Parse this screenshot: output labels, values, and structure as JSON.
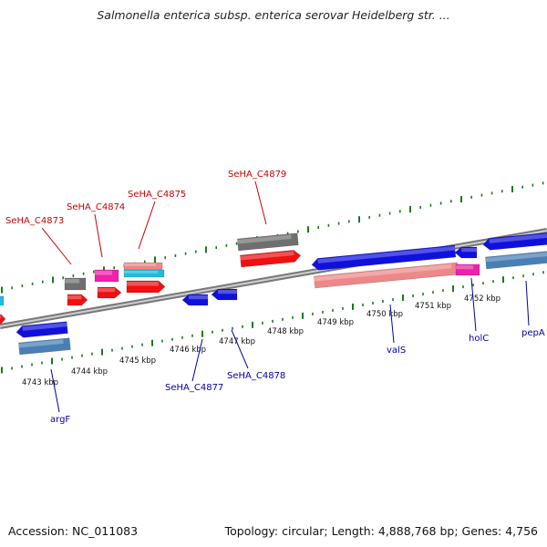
{
  "title": "Salmonella enterica subsp. enterica serovar Heidelberg str. ...",
  "footer": {
    "accession": "Accession: NC_011083",
    "summary": "Topology: circular; Length: 4,888,768 bp; Genes: 4,756"
  },
  "colors": {
    "backbone": "#8a8a8a",
    "tick": "#1a7a1a",
    "label_red": "#cc0000",
    "label_blue": "#0000aa",
    "gene_blue": "#1010dd",
    "gene_red": "#ee1111",
    "gene_gray": "#6f6f6f",
    "gene_pink": "#ee8888",
    "gene_magenta": "#ee22aa",
    "gene_cyan": "#22bbdd",
    "gene_steel": "#4a7fb5"
  },
  "scale": {
    "unit": "kbp",
    "ticks": [
      "4743 kbp",
      "4744 kbp",
      "4745 kbp",
      "4746 kbp",
      "4747 kbp",
      "4748 kbp",
      "4749 kbp",
      "4750 kbp",
      "4751 kbp",
      "4752 kbp"
    ]
  },
  "gene_labels": [
    {
      "name": "SeHA_C4873",
      "strand": "forward"
    },
    {
      "name": "SeHA_C4874",
      "strand": "forward"
    },
    {
      "name": "SeHA_C4875",
      "strand": "forward"
    },
    {
      "name": "SeHA_C4879",
      "strand": "forward"
    },
    {
      "name": "argF",
      "strand": "reverse"
    },
    {
      "name": "SeHA_C4877",
      "strand": "reverse"
    },
    {
      "name": "SeHA_C4878",
      "strand": "reverse"
    },
    {
      "name": "valS",
      "strand": "reverse"
    },
    {
      "name": "holC",
      "strand": "reverse"
    },
    {
      "name": "pepA",
      "strand": "reverse"
    }
  ]
}
